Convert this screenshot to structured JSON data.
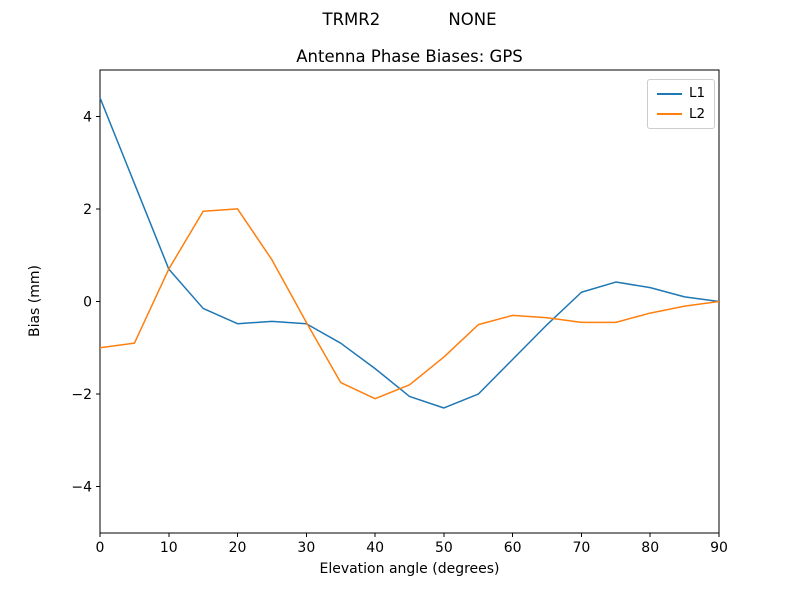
{
  "chart_data": {
    "type": "line",
    "suptitle": "TRMR2             NONE",
    "title": "Antenna Phase Biases: GPS",
    "xlabel": "Elevation angle (degrees)",
    "ylabel": "Bias (mm)",
    "xlim": [
      0,
      90
    ],
    "ylim": [
      -5,
      5
    ],
    "xticks": [
      0,
      10,
      20,
      30,
      40,
      50,
      60,
      70,
      80,
      90
    ],
    "yticks": [
      -4,
      -2,
      0,
      2,
      4
    ],
    "grid": false,
    "legend_position": "upper right",
    "x": [
      0,
      5,
      10,
      15,
      20,
      25,
      30,
      35,
      40,
      45,
      50,
      55,
      60,
      65,
      70,
      75,
      80,
      85,
      90
    ],
    "series": [
      {
        "name": "L1",
        "color": "#1f77b4",
        "values": [
          4.4,
          2.55,
          0.7,
          -0.15,
          -0.48,
          -0.43,
          -0.48,
          -0.9,
          -1.45,
          -2.05,
          -2.3,
          -2.0,
          -1.25,
          -0.5,
          0.2,
          0.42,
          0.3,
          0.1,
          0.0
        ]
      },
      {
        "name": "L2",
        "color": "#ff7f0e",
        "values": [
          -1.0,
          -0.9,
          0.7,
          1.95,
          2.0,
          0.9,
          -0.45,
          -1.75,
          -2.1,
          -1.8,
          -1.2,
          -0.5,
          -0.3,
          -0.35,
          -0.45,
          -0.45,
          -0.25,
          -0.1,
          0.0
        ]
      }
    ]
  }
}
